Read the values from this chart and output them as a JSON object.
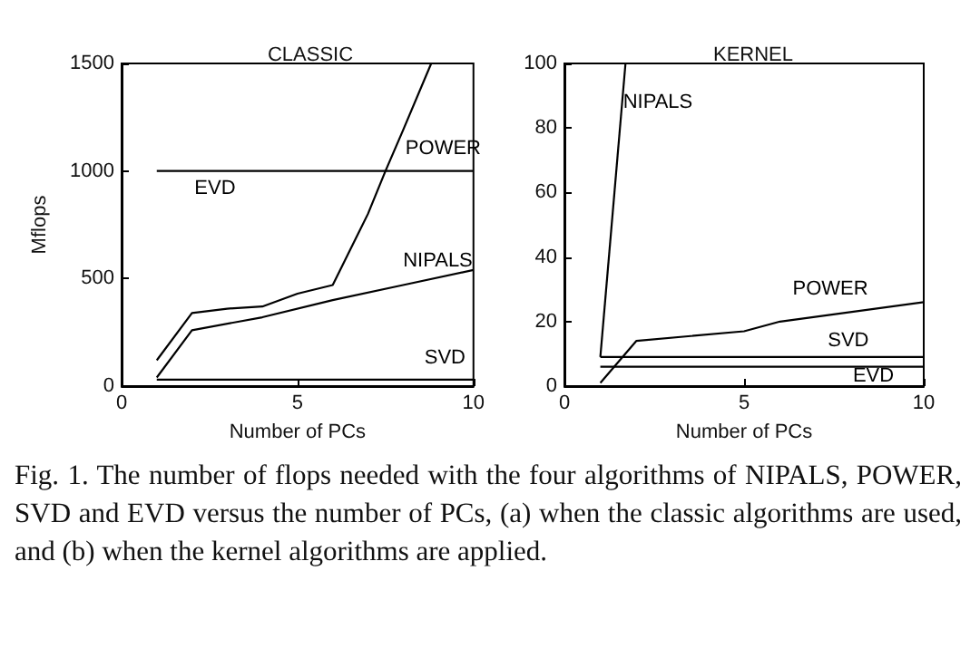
{
  "chart_data": [
    {
      "type": "line",
      "title": "CLASSIC",
      "xlabel": "Number of PCs",
      "ylabel": "Mflops",
      "xlim": [
        0,
        10
      ],
      "xticks": [
        0,
        5,
        10
      ],
      "ylim": [
        0,
        1500
      ],
      "yticks": [
        0,
        500,
        1000,
        1500
      ],
      "series": [
        {
          "name": "EVD",
          "color": "#000000",
          "x": [
            1,
            10
          ],
          "values": [
            1000,
            1000
          ]
        },
        {
          "name": "POWER",
          "color": "#000000",
          "x": [
            1,
            2,
            3,
            4,
            5,
            6,
            7,
            7.5,
            8,
            8.8
          ],
          "values": [
            120,
            340,
            360,
            370,
            430,
            470,
            800,
            1000,
            1190,
            1500
          ]
        },
        {
          "name": "NIPALS",
          "color": "#000000",
          "x": [
            1,
            2,
            4,
            6,
            8,
            10
          ],
          "values": [
            40,
            260,
            320,
            400,
            470,
            540
          ]
        },
        {
          "name": "SVD",
          "color": "#000000",
          "x": [
            1,
            10
          ],
          "values": [
            30,
            30
          ]
        }
      ],
      "annotations": [
        "Fig. 1. The number of flops needed with the four algorithms of NIPALS, POWER, SVD and EVD versus the number of PCs, (a) when the classic algorithms are used, and (b) when the kernel algorithms are applied."
      ]
    },
    {
      "type": "line",
      "title": "KERNEL",
      "xlabel": "Number of PCs",
      "xlim": [
        0,
        10
      ],
      "xticks": [
        0,
        5,
        10
      ],
      "ylim": [
        0,
        100
      ],
      "yticks": [
        0,
        20,
        40,
        60,
        80,
        100
      ],
      "series": [
        {
          "name": "NIPALS",
          "color": "#000000",
          "x": [
            1,
            1.7
          ],
          "values": [
            9,
            100
          ]
        },
        {
          "name": "POWER",
          "color": "#000000",
          "x": [
            1,
            2,
            5,
            6,
            10
          ],
          "values": [
            1,
            14,
            17,
            20,
            26
          ]
        },
        {
          "name": "SVD",
          "color": "#000000",
          "x": [
            1,
            10
          ],
          "values": [
            9,
            9
          ]
        },
        {
          "name": "EVD",
          "color": "#000000",
          "x": [
            1,
            10
          ],
          "values": [
            6,
            6
          ]
        }
      ]
    }
  ]
}
